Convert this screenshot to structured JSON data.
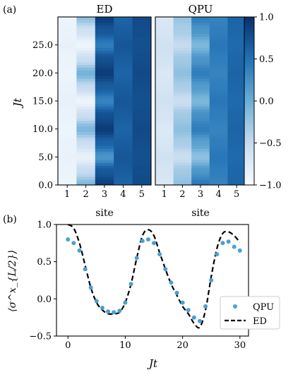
{
  "labels": {
    "panel_a": "(a)",
    "panel_b": "(b)"
  },
  "colors": {
    "low": "#f7fbff",
    "mid": "#6baed6",
    "high": "#08306b",
    "qpu": "#4a9fd4",
    "ed_line": "#000000"
  },
  "chart_data": [
    {
      "type": "heatmap",
      "title": "ED",
      "xlabel": "site",
      "ylabel": "Jt",
      "x": [
        1,
        2,
        3,
        4,
        5
      ],
      "xticks": [
        "1",
        "2",
        "3",
        "4",
        "5"
      ],
      "ylim": [
        0,
        30
      ],
      "yticks": [
        "0.0",
        "5.0",
        "10.0",
        "15.0",
        "20.0",
        "25.0"
      ],
      "colormap": "Blues",
      "vlim": [
        -1,
        1
      ],
      "t": [
        0,
        2.5,
        5,
        7.5,
        10,
        12.5,
        15,
        17.5,
        20,
        22.5,
        25,
        27.5,
        30
      ],
      "values_by_site": [
        [
          -0.9,
          -0.88,
          -0.86,
          -0.87,
          -0.9,
          -0.87,
          -0.84,
          -0.86,
          -0.9,
          -0.88,
          -0.85,
          -0.87,
          -0.9
        ],
        [
          -0.1,
          -0.5,
          -0.85,
          -0.55,
          -0.1,
          -0.55,
          -0.9,
          -0.5,
          -0.05,
          -0.55,
          -0.9,
          -0.6,
          -0.2
        ],
        [
          0.9,
          0.7,
          0.2,
          0.6,
          0.9,
          0.75,
          0.35,
          0.65,
          0.9,
          0.75,
          0.4,
          0.7,
          0.9
        ],
        [
          0.6,
          0.65,
          0.7,
          0.65,
          0.6,
          0.65,
          0.7,
          0.65,
          0.6,
          0.65,
          0.7,
          0.65,
          0.6
        ],
        [
          0.8,
          0.78,
          0.75,
          0.78,
          0.8,
          0.78,
          0.75,
          0.78,
          0.8,
          0.78,
          0.75,
          0.78,
          0.8
        ]
      ]
    },
    {
      "type": "heatmap",
      "title": "QPU",
      "xlabel": "site",
      "x": [
        1,
        2,
        3,
        4,
        5
      ],
      "xticks": [
        "1",
        "2",
        "3",
        "4",
        "5"
      ],
      "ylim": [
        0,
        30
      ],
      "colormap": "Blues",
      "vlim": [
        -1,
        1
      ],
      "t": [
        0,
        2.5,
        5,
        7.5,
        10,
        12.5,
        15,
        17.5,
        20,
        22.5,
        25,
        27.5,
        30
      ],
      "values_by_site": [
        [
          -0.7,
          -0.65,
          -0.6,
          -0.68,
          -0.72,
          -0.64,
          -0.6,
          -0.66,
          -0.7,
          -0.62,
          -0.6,
          -0.66,
          -0.7
        ],
        [
          -0.2,
          -0.3,
          -0.55,
          -0.35,
          -0.2,
          -0.3,
          -0.55,
          -0.35,
          -0.2,
          -0.3,
          -0.5,
          -0.35,
          -0.25
        ],
        [
          0.45,
          0.2,
          -0.2,
          0.1,
          0.4,
          0.25,
          -0.1,
          0.15,
          0.4,
          0.2,
          -0.1,
          0.2,
          0.4
        ],
        [
          0.35,
          0.4,
          0.45,
          0.4,
          0.35,
          0.4,
          0.45,
          0.4,
          0.35,
          0.4,
          0.45,
          0.4,
          0.35
        ],
        [
          0.6,
          0.58,
          0.55,
          0.58,
          0.6,
          0.58,
          0.55,
          0.58,
          0.6,
          0.58,
          0.55,
          0.58,
          0.6
        ]
      ]
    },
    {
      "type": "colorbar",
      "vlim": [
        -1,
        1
      ],
      "ticks": [
        "1.0",
        "0.5",
        "0.0",
        "−0.5",
        "−1.0"
      ],
      "colormap": "Blues"
    },
    {
      "type": "line",
      "xlabel": "Jt",
      "ylabel": "⟨σ^x_{L/2}⟩",
      "xlim": [
        -2,
        31.5
      ],
      "ylim": [
        -0.5,
        1.0
      ],
      "xticks": [
        "0",
        "10",
        "20",
        "30"
      ],
      "yticks": [
        "1.0",
        "0.5",
        "0.0",
        "−0.5"
      ],
      "legend": {
        "position": "lower-right",
        "entries": [
          "QPU",
          "ED"
        ]
      },
      "series": [
        {
          "name": "ED",
          "style": "dashed",
          "x": [
            0,
            1,
            2,
            3,
            4,
            5,
            6,
            7,
            8,
            9,
            10,
            11,
            12,
            13,
            14,
            15,
            16,
            17,
            18,
            19,
            20,
            21,
            22,
            23,
            24,
            25,
            26,
            27,
            28,
            29,
            30
          ],
          "y": [
            1.0,
            0.95,
            0.75,
            0.45,
            0.15,
            -0.05,
            -0.15,
            -0.2,
            -0.2,
            -0.18,
            -0.05,
            0.2,
            0.55,
            0.85,
            0.93,
            0.85,
            0.62,
            0.4,
            0.2,
            0.05,
            -0.1,
            -0.2,
            -0.33,
            -0.38,
            -0.15,
            0.3,
            0.68,
            0.88,
            0.9,
            0.85,
            0.76
          ]
        },
        {
          "name": "QPU",
          "style": "markers",
          "x": [
            0,
            1,
            2,
            3,
            4,
            5,
            6,
            7,
            8,
            9,
            10,
            11,
            12,
            13,
            14,
            15,
            16,
            17,
            18,
            19,
            20,
            21,
            22,
            23,
            24,
            25,
            26,
            27,
            28,
            29,
            30
          ],
          "y": [
            0.8,
            0.75,
            0.65,
            0.4,
            0.15,
            -0.03,
            -0.12,
            -0.17,
            -0.18,
            -0.16,
            -0.05,
            0.2,
            0.55,
            0.78,
            0.8,
            0.75,
            0.6,
            0.4,
            0.22,
            0.08,
            -0.05,
            -0.15,
            -0.25,
            -0.3,
            -0.1,
            0.25,
            0.6,
            0.75,
            0.77,
            0.7,
            0.65
          ]
        }
      ]
    }
  ]
}
